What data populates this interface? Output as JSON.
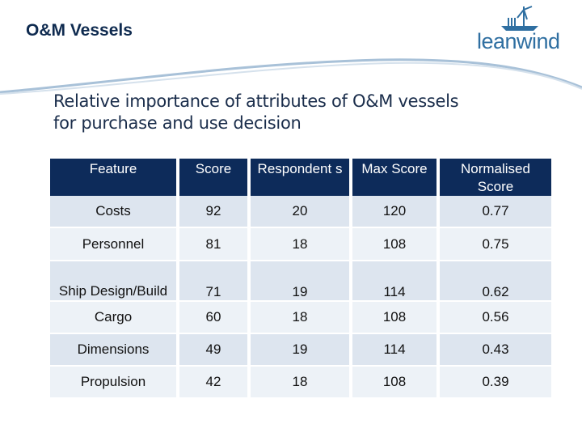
{
  "header": {
    "title": "O&M Vessels",
    "logo_text": "leanwind",
    "brand_color": "#2f6fa1"
  },
  "subtitle": {
    "line1": "Relative importance of attributes of O&M vessels",
    "line2": "for purchase and use decision"
  },
  "table": {
    "columns": [
      "Feature",
      "Score",
      "Respondent s",
      "Max Score",
      "Normalised Score"
    ],
    "header_color": "#0d2b5a",
    "rows": [
      {
        "feature": "Costs",
        "score": "92",
        "respondents": "20",
        "max_score": "120",
        "normalised": "0.77"
      },
      {
        "feature": "Personnel",
        "score": "81",
        "respondents": "18",
        "max_score": "108",
        "normalised": "0.75"
      },
      {
        "feature": "Ship Design/Build",
        "score": "71",
        "respondents": "19",
        "max_score": "114",
        "normalised": "0.62"
      },
      {
        "feature": "Cargo",
        "score": "60",
        "respondents": "18",
        "max_score": "108",
        "normalised": "0.56"
      },
      {
        "feature": "Dimensions",
        "score": "49",
        "respondents": "19",
        "max_score": "114",
        "normalised": "0.43"
      },
      {
        "feature": "Propulsion",
        "score": "42",
        "respondents": "18",
        "max_score": "108",
        "normalised": "0.39"
      }
    ]
  }
}
